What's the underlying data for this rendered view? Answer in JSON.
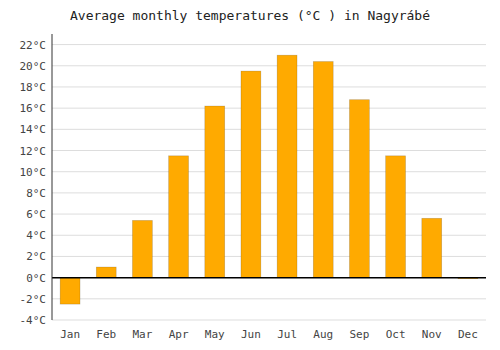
{
  "chart_data": {
    "type": "bar",
    "title": "Average monthly temperatures (°C ) in Nagyrábé",
    "categories": [
      "Jan",
      "Feb",
      "Mar",
      "Apr",
      "May",
      "Jun",
      "Jul",
      "Aug",
      "Sep",
      "Oct",
      "Nov",
      "Dec"
    ],
    "values": [
      -2.5,
      1.0,
      5.4,
      11.5,
      16.2,
      19.5,
      21.0,
      20.4,
      16.8,
      11.5,
      5.6,
      -0.1
    ],
    "color": "#FFAA00",
    "ylim": [
      -4,
      23
    ],
    "yticks": [
      {
        "value": -4,
        "label": "-4°C"
      },
      {
        "value": -2,
        "label": "-2°C"
      },
      {
        "value": 0,
        "label": "0°C"
      },
      {
        "value": 2,
        "label": "2°C"
      },
      {
        "value": 4,
        "label": "4°C"
      },
      {
        "value": 6,
        "label": "6°C"
      },
      {
        "value": 8,
        "label": "8°C"
      },
      {
        "value": 10,
        "label": "10°C"
      },
      {
        "value": 12,
        "label": "12°C"
      },
      {
        "value": 14,
        "label": "14°C"
      },
      {
        "value": 16,
        "label": "16°C"
      },
      {
        "value": 18,
        "label": "18°C"
      },
      {
        "value": 20,
        "label": "20°C"
      },
      {
        "value": 22,
        "label": "22°C"
      }
    ],
    "grid": true
  }
}
